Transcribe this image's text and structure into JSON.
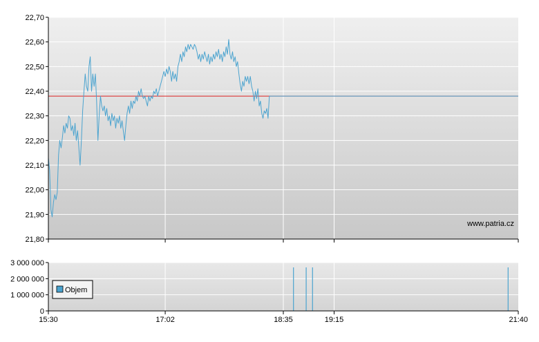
{
  "chart_data": [
    {
      "type": "line",
      "x_axis_type": "time",
      "ylim": [
        21.8,
        22.7
      ],
      "y_tick_labels": [
        "21,80",
        "21,90",
        "22,00",
        "22,10",
        "22,20",
        "22,30",
        "22,40",
        "22,50",
        "22,60",
        "22,70"
      ],
      "y_tick_values": [
        21.8,
        21.9,
        22.0,
        22.1,
        22.2,
        22.3,
        22.4,
        22.5,
        22.6,
        22.7
      ],
      "x_range": [
        "15:30",
        "21:40"
      ],
      "reference_line": {
        "value": 22.38,
        "color": "#dd2222"
      },
      "series": [
        {
          "color": "#4aa3cf",
          "points": [
            [
              "15:30",
              22.13
            ],
            [
              "15:31",
              22.08
            ],
            [
              "15:32",
              21.92
            ],
            [
              "15:33",
              21.89
            ],
            [
              "15:34",
              21.95
            ],
            [
              "15:35",
              21.98
            ],
            [
              "15:36",
              21.96
            ],
            [
              "15:37",
              21.99
            ],
            [
              "15:38",
              22.14
            ],
            [
              "15:39",
              22.2
            ],
            [
              "15:40",
              22.17
            ],
            [
              "15:41",
              22.21
            ],
            [
              "15:42",
              22.26
            ],
            [
              "15:43",
              22.23
            ],
            [
              "15:44",
              22.27
            ],
            [
              "15:45",
              22.25
            ],
            [
              "15:46",
              22.3
            ],
            [
              "15:47",
              22.29
            ],
            [
              "15:48",
              22.24
            ],
            [
              "15:49",
              22.26
            ],
            [
              "15:50",
              22.22
            ],
            [
              "15:51",
              22.27
            ],
            [
              "15:52",
              22.2
            ],
            [
              "15:53",
              22.24
            ],
            [
              "15:54",
              22.17
            ],
            [
              "15:55",
              22.1
            ],
            [
              "15:56",
              22.2
            ],
            [
              "15:57",
              22.32
            ],
            [
              "15:58",
              22.4
            ],
            [
              "15:59",
              22.47
            ],
            [
              "16:00",
              22.42
            ],
            [
              "16:01",
              22.4
            ],
            [
              "16:02",
              22.5
            ],
            [
              "16:03",
              22.54
            ],
            [
              "16:04",
              22.4
            ],
            [
              "16:05",
              22.47
            ],
            [
              "16:06",
              22.42
            ],
            [
              "16:07",
              22.47
            ],
            [
              "16:08",
              22.36
            ],
            [
              "16:09",
              22.2
            ],
            [
              "16:10",
              22.3
            ],
            [
              "16:11",
              22.38
            ],
            [
              "16:12",
              22.34
            ],
            [
              "16:13",
              22.32
            ],
            [
              "16:14",
              22.34
            ],
            [
              "16:15",
              22.3
            ],
            [
              "16:16",
              22.33
            ],
            [
              "16:17",
              22.28
            ],
            [
              "16:18",
              22.3
            ],
            [
              "16:19",
              22.26
            ],
            [
              "16:20",
              22.31
            ],
            [
              "16:21",
              22.28
            ],
            [
              "16:22",
              22.3
            ],
            [
              "16:23",
              22.25
            ],
            [
              "16:24",
              22.29
            ],
            [
              "16:25",
              22.27
            ],
            [
              "16:26",
              22.3
            ],
            [
              "16:27",
              22.25
            ],
            [
              "16:28",
              22.28
            ],
            [
              "16:29",
              22.24
            ],
            [
              "16:30",
              22.2
            ],
            [
              "16:31",
              22.26
            ],
            [
              "16:32",
              22.31
            ],
            [
              "16:33",
              22.34
            ],
            [
              "16:34",
              22.31
            ],
            [
              "16:35",
              22.36
            ],
            [
              "16:36",
              22.33
            ],
            [
              "16:37",
              22.36
            ],
            [
              "16:38",
              22.35
            ],
            [
              "16:39",
              22.38
            ],
            [
              "16:40",
              22.36
            ],
            [
              "16:41",
              22.4
            ],
            [
              "16:42",
              22.38
            ],
            [
              "16:43",
              22.41
            ],
            [
              "16:44",
              22.38
            ],
            [
              "16:45",
              22.37
            ],
            [
              "16:46",
              22.38
            ],
            [
              "16:47",
              22.36
            ],
            [
              "16:48",
              22.34
            ],
            [
              "16:49",
              22.38
            ],
            [
              "16:50",
              22.36
            ],
            [
              "16:51",
              22.38
            ],
            [
              "16:52",
              22.37
            ],
            [
              "16:53",
              22.4
            ],
            [
              "16:54",
              22.39
            ],
            [
              "16:55",
              22.41
            ],
            [
              "16:56",
              22.38
            ],
            [
              "16:57",
              22.4
            ],
            [
              "16:58",
              22.42
            ],
            [
              "16:59",
              22.44
            ],
            [
              "17:00",
              22.46
            ],
            [
              "17:01",
              22.48
            ],
            [
              "17:02",
              22.46
            ],
            [
              "17:03",
              22.49
            ],
            [
              "17:04",
              22.47
            ],
            [
              "17:05",
              22.5
            ],
            [
              "17:06",
              22.48
            ],
            [
              "17:07",
              22.44
            ],
            [
              "17:08",
              22.48
            ],
            [
              "17:09",
              22.45
            ],
            [
              "17:10",
              22.47
            ],
            [
              "17:11",
              22.44
            ],
            [
              "17:12",
              22.5
            ],
            [
              "17:13",
              22.52
            ],
            [
              "17:14",
              22.55
            ],
            [
              "17:15",
              22.52
            ],
            [
              "17:16",
              22.56
            ],
            [
              "17:17",
              22.54
            ],
            [
              "17:18",
              22.58
            ],
            [
              "17:19",
              22.56
            ],
            [
              "17:20",
              22.59
            ],
            [
              "17:21",
              22.57
            ],
            [
              "17:22",
              22.59
            ],
            [
              "17:23",
              22.58
            ],
            [
              "17:24",
              22.57
            ],
            [
              "17:25",
              22.59
            ],
            [
              "17:26",
              22.58
            ],
            [
              "17:27",
              22.56
            ],
            [
              "17:28",
              22.53
            ],
            [
              "17:29",
              22.55
            ],
            [
              "17:30",
              22.52
            ],
            [
              "17:31",
              22.55
            ],
            [
              "17:32",
              22.53
            ],
            [
              "17:33",
              22.56
            ],
            [
              "17:34",
              22.54
            ],
            [
              "17:35",
              22.52
            ],
            [
              "17:36",
              22.55
            ],
            [
              "17:37",
              22.51
            ],
            [
              "17:38",
              22.54
            ],
            [
              "17:39",
              22.52
            ],
            [
              "17:40",
              22.55
            ],
            [
              "17:41",
              22.53
            ],
            [
              "17:42",
              22.56
            ],
            [
              "17:43",
              22.54
            ],
            [
              "17:44",
              22.57
            ],
            [
              "17:45",
              22.53
            ],
            [
              "17:46",
              22.55
            ],
            [
              "17:47",
              22.52
            ],
            [
              "17:48",
              22.56
            ],
            [
              "17:49",
              22.54
            ],
            [
              "17:50",
              22.58
            ],
            [
              "17:51",
              22.55
            ],
            [
              "17:52",
              22.61
            ],
            [
              "17:53",
              22.55
            ],
            [
              "17:54",
              22.53
            ],
            [
              "17:55",
              22.56
            ],
            [
              "17:56",
              22.52
            ],
            [
              "17:57",
              22.54
            ],
            [
              "17:58",
              22.5
            ],
            [
              "17:59",
              22.52
            ],
            [
              "18:00",
              22.47
            ],
            [
              "18:01",
              22.43
            ],
            [
              "18:02",
              22.4
            ],
            [
              "18:03",
              22.44
            ],
            [
              "18:04",
              22.42
            ],
            [
              "18:05",
              22.46
            ],
            [
              "18:06",
              22.44
            ],
            [
              "18:07",
              22.46
            ],
            [
              "18:08",
              22.43
            ],
            [
              "18:09",
              22.46
            ],
            [
              "18:10",
              22.42
            ],
            [
              "18:11",
              22.4
            ],
            [
              "18:12",
              22.36
            ],
            [
              "18:13",
              22.4
            ],
            [
              "18:14",
              22.37
            ],
            [
              "18:15",
              22.41
            ],
            [
              "18:16",
              22.34
            ],
            [
              "18:17",
              22.36
            ],
            [
              "18:18",
              22.31
            ],
            [
              "18:19",
              22.29
            ],
            [
              "18:20",
              22.32
            ],
            [
              "18:21",
              22.31
            ],
            [
              "18:22",
              22.33
            ],
            [
              "18:23",
              22.29
            ],
            [
              "18:24",
              22.38
            ],
            [
              "21:40",
              22.38
            ]
          ]
        }
      ]
    },
    {
      "type": "bar",
      "x_axis_type": "time",
      "ylim": [
        0,
        3000000
      ],
      "y_tick_labels": [
        "0",
        "1 000 000",
        "2 000 000",
        "3 000 000"
      ],
      "y_tick_values": [
        0,
        1000000,
        2000000,
        3000000
      ],
      "x_tick_labels": [
        "15:30",
        "17:02",
        "18:35",
        "19:15",
        "21:40"
      ],
      "x_tick_times": [
        "15:30",
        "17:02",
        "18:35",
        "19:15",
        "21:40"
      ],
      "legend": {
        "entries": [
          "Objem"
        ],
        "placement": "top-left"
      },
      "series": [
        {
          "name": "Objem",
          "color": "#4aa3cf",
          "bars": [
            [
              "18:43",
              2700000
            ],
            [
              "18:53",
              2700000
            ],
            [
              "18:58",
              2700000
            ],
            [
              "21:32",
              2700000
            ]
          ]
        }
      ]
    }
  ],
  "watermark": "www.patria.cz"
}
